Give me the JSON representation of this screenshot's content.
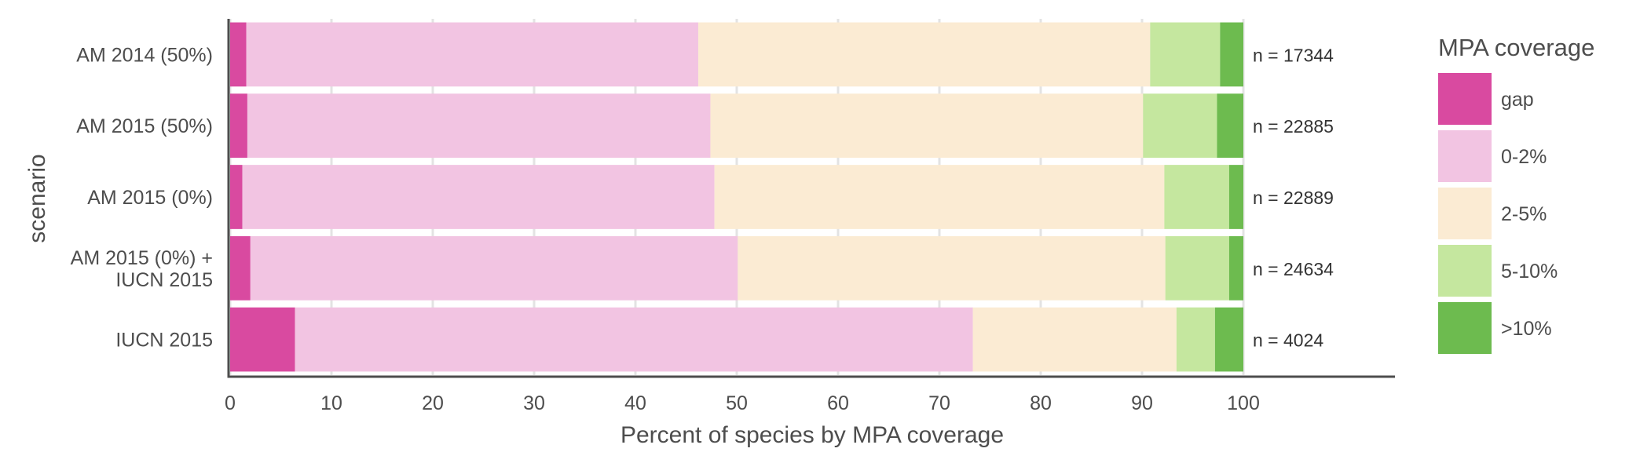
{
  "chart_data": {
    "type": "bar",
    "orientation": "horizontal",
    "stacked": true,
    "title": "",
    "xlabel": "Percent of species by MPA coverage",
    "ylabel": "scenario",
    "xlim": [
      0,
      100
    ],
    "x_ticks": [
      "0",
      "10",
      "20",
      "30",
      "40",
      "50",
      "60",
      "70",
      "80",
      "90",
      "100"
    ],
    "grid": true,
    "categories": [
      "AM 2014 (50%)",
      "AM 2015 (50%)",
      "AM 2015 (0%)",
      "AM 2015 (0%) +\nIUCN 2015",
      "IUCN 2015"
    ],
    "n_labels": [
      "n = 17344",
      "n = 22885",
      "n = 22889",
      "n = 24634",
      "n = 4024"
    ],
    "series": [
      {
        "name": "gap",
        "color": "#d94aa0",
        "values": [
          1.6,
          1.7,
          1.2,
          2.0,
          6.4
        ]
      },
      {
        "name": "0-2%",
        "color": "#f2c4e2",
        "values": [
          44.6,
          45.7,
          46.6,
          48.1,
          66.9
        ]
      },
      {
        "name": "2-5%",
        "color": "#fbebd3",
        "values": [
          44.6,
          42.7,
          44.4,
          42.2,
          20.1
        ]
      },
      {
        "name": "5-10%",
        "color": "#c5e79f",
        "values": [
          6.9,
          7.3,
          6.4,
          6.3,
          3.8
        ]
      },
      {
        "name": ">10%",
        "color": "#6dbb4f",
        "values": [
          2.3,
          2.6,
          1.4,
          1.4,
          2.8
        ]
      }
    ],
    "legend": {
      "title": "MPA coverage",
      "placement": "right"
    }
  }
}
